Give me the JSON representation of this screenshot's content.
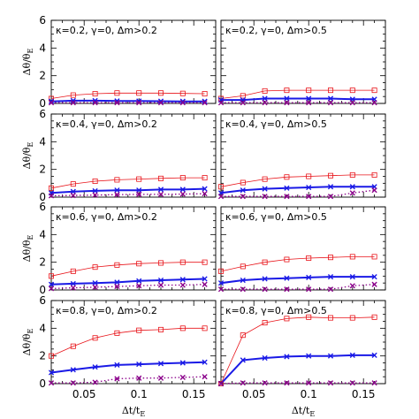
{
  "chart_data": {
    "type": "line",
    "grid": false,
    "legend": "none",
    "ylabel": "Δθ/θ",
    "ylabel_sub": "E",
    "xlabel": "Δt/t",
    "xlabel_sub": "E",
    "xlim": [
      0.02,
      0.17
    ],
    "ylim": [
      0,
      6
    ],
    "x_ticklabels": [
      "0.05",
      "0.1",
      "0.15"
    ],
    "y_ticklabels": [
      "0",
      "2",
      "4",
      "6"
    ],
    "x": [
      0.02,
      0.04,
      0.06,
      0.08,
      0.1,
      0.12,
      0.14,
      0.16
    ],
    "colors": {
      "red": "#e8141a",
      "blue": "#1a1ae6",
      "purple": "#8b008b",
      "axes": "#000000"
    },
    "panels": [
      {
        "title": "κ=0.2, γ=0, Δm>0.2",
        "series": [
          {
            "style": "red-squares-thin",
            "values": [
              0.35,
              0.6,
              0.7,
              0.75,
              0.75,
              0.75,
              0.72,
              0.7
            ]
          },
          {
            "style": "blue-crosses-thick",
            "values": [
              0.15,
              0.2,
              0.2,
              0.18,
              0.17,
              0.16,
              0.15,
              0.15
            ]
          },
          {
            "style": "purple-crosses-dotted",
            "values": [
              0.05,
              0.05,
              0.05,
              0.05,
              0.05,
              0.05,
              0.05,
              0.05
            ]
          }
        ]
      },
      {
        "title": "κ=0.2, γ=0, Δm>0.5",
        "series": [
          {
            "style": "red-squares-thin",
            "values": [
              0.35,
              0.55,
              0.9,
              0.95,
              0.95,
              0.95,
              0.95,
              0.95
            ]
          },
          {
            "style": "blue-crosses-thick",
            "values": [
              0.25,
              0.25,
              0.35,
              0.35,
              0.35,
              0.35,
              0.3,
              0.3
            ]
          },
          {
            "style": "purple-crosses-dotted",
            "values": [
              0.05,
              0.05,
              0.05,
              0.05,
              0.05,
              0.05,
              0.05,
              0.05
            ]
          }
        ]
      },
      {
        "title": "κ=0.4, γ=0, Δm>0.2",
        "series": [
          {
            "style": "red-squares-thin",
            "values": [
              0.65,
              0.95,
              1.15,
              1.25,
              1.3,
              1.35,
              1.4,
              1.4
            ]
          },
          {
            "style": "blue-crosses-thick",
            "values": [
              0.3,
              0.4,
              0.45,
              0.5,
              0.5,
              0.55,
              0.55,
              0.6
            ]
          },
          {
            "style": "purple-crosses-dotted",
            "values": [
              0.1,
              0.12,
              0.15,
              0.18,
              0.2,
              0.2,
              0.22,
              0.25
            ]
          }
        ]
      },
      {
        "title": "κ=0.4, γ=0, Δm>0.5",
        "series": [
          {
            "style": "red-squares-thin",
            "values": [
              0.75,
              1.05,
              1.3,
              1.45,
              1.5,
              1.55,
              1.6,
              1.6
            ]
          },
          {
            "style": "blue-crosses-thick",
            "values": [
              0.3,
              0.5,
              0.6,
              0.65,
              0.7,
              0.75,
              0.75,
              0.75
            ]
          },
          {
            "style": "purple-crosses-dotted",
            "values": [
              0.05,
              0.05,
              0.05,
              0.05,
              0.05,
              0.05,
              0.3,
              0.5
            ]
          }
        ]
      },
      {
        "title": "κ=0.6, γ=0, Δm>0.2",
        "series": [
          {
            "style": "red-squares-thin",
            "values": [
              1.0,
              1.35,
              1.65,
              1.8,
              1.9,
              1.95,
              2.0,
              2.0
            ]
          },
          {
            "style": "blue-crosses-thick",
            "values": [
              0.4,
              0.45,
              0.5,
              0.55,
              0.65,
              0.7,
              0.75,
              0.8
            ]
          },
          {
            "style": "purple-crosses-dotted",
            "values": [
              0.1,
              0.15,
              0.2,
              0.25,
              0.3,
              0.35,
              0.35,
              0.4
            ]
          }
        ]
      },
      {
        "title": "κ=0.6, γ=0, Δm>0.5",
        "series": [
          {
            "style": "red-squares-thin",
            "values": [
              1.35,
              1.7,
              2.0,
              2.2,
              2.3,
              2.35,
              2.4,
              2.4
            ]
          },
          {
            "style": "blue-crosses-thick",
            "values": [
              0.5,
              0.7,
              0.8,
              0.85,
              0.9,
              0.95,
              0.95,
              0.95
            ]
          },
          {
            "style": "purple-crosses-dotted",
            "values": [
              0.05,
              0.05,
              0.05,
              0.05,
              0.05,
              0.05,
              0.3,
              0.4
            ]
          }
        ]
      },
      {
        "title": "κ=0.8, γ=0, Δm>0.2",
        "series": [
          {
            "style": "red-squares-thin",
            "values": [
              2.0,
              2.7,
              3.3,
              3.65,
              3.85,
              3.9,
              4.0,
              4.0
            ]
          },
          {
            "style": "blue-crosses-thick",
            "values": [
              0.8,
              1.0,
              1.2,
              1.35,
              1.4,
              1.45,
              1.5,
              1.55
            ]
          },
          {
            "style": "purple-crosses-dotted",
            "values": [
              0.05,
              0.05,
              0.1,
              0.35,
              0.4,
              0.4,
              0.45,
              0.5
            ]
          }
        ]
      },
      {
        "title": "κ=0.8, γ=0, Δm>0.5",
        "series": [
          {
            "style": "red-squares-thin",
            "values": [
              0.0,
              3.5,
              4.4,
              4.7,
              4.8,
              4.75,
              4.75,
              4.8
            ]
          },
          {
            "style": "blue-crosses-thick",
            "values": [
              0.0,
              1.7,
              1.85,
              1.95,
              2.0,
              2.0,
              2.05,
              2.05
            ]
          },
          {
            "style": "purple-crosses-dotted",
            "values": [
              0.0,
              0.05,
              0.05,
              0.05,
              0.05,
              0.05,
              0.05,
              0.05
            ]
          }
        ]
      }
    ]
  }
}
